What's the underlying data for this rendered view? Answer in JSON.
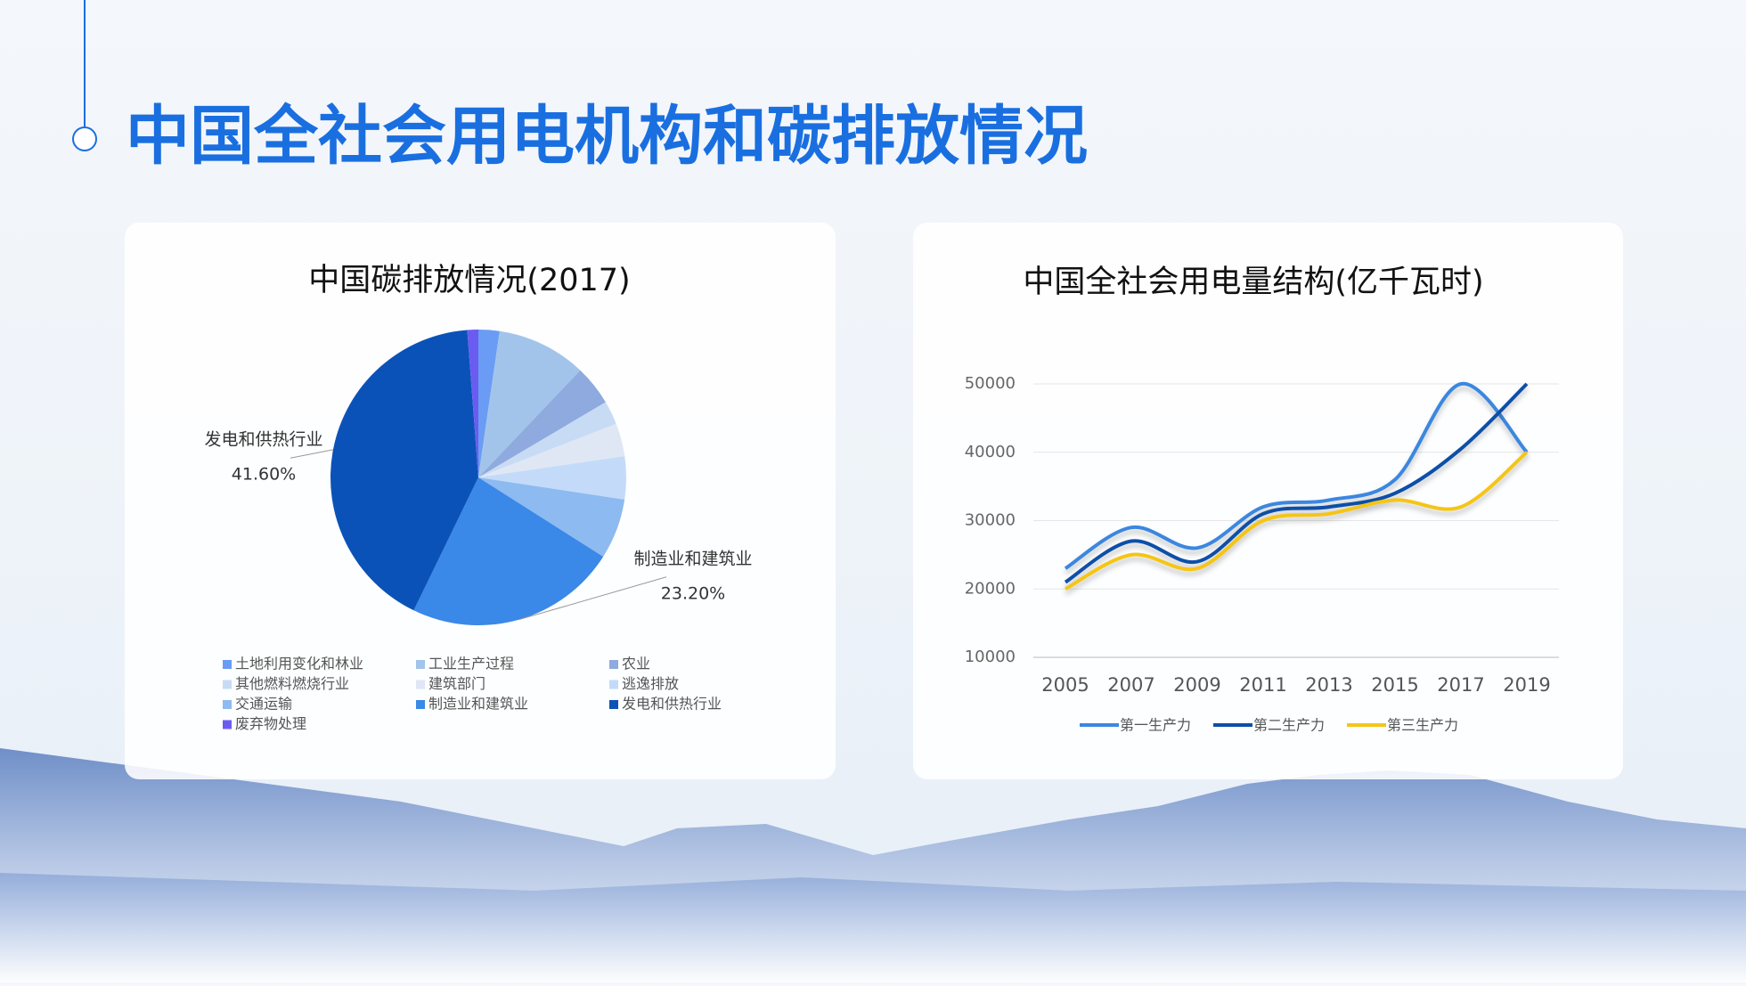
{
  "title": "中国全社会用电机构和碳排放情况",
  "chart_data": [
    {
      "type": "pie",
      "title": "中国碳排放情况(2017)",
      "categories": [
        "土地利用变化和林业",
        "工业生产过程",
        "农业",
        "其他燃料燃烧行业",
        "建筑部门",
        "逃逸排放",
        "交通运输",
        "制造业和建筑业",
        "发电和供热行业",
        "废弃物处理"
      ],
      "values": [
        2.3,
        9.8,
        4.4,
        2.6,
        3.6,
        4.7,
        6.6,
        23.2,
        41.6,
        1.2
      ],
      "value_labels": [
        null,
        null,
        null,
        null,
        null,
        null,
        null,
        "23.20%",
        "41.60%",
        null
      ],
      "colors": [
        "#6a9cf5",
        "#a3c4ea",
        "#8eaade",
        "#c7dbf5",
        "#dfe7f5",
        "#c3dbf9",
        "#8dbaf0",
        "#3a88e8",
        "#0b52b8",
        "#6a5cf0"
      ]
    },
    {
      "type": "line",
      "title": "中国全社会用电量结构(亿千瓦时)",
      "categories": [
        "2005",
        "2007",
        "2009",
        "2011",
        "2013",
        "2015",
        "2017",
        "2019"
      ],
      "series": [
        {
          "name": "第一生产力",
          "color": "#3b87e0",
          "values": [
            23000,
            29000,
            26000,
            32000,
            33000,
            36000,
            50000,
            40000
          ]
        },
        {
          "name": "第二生产力",
          "color": "#0d4fa8",
          "values": [
            21000,
            27000,
            24000,
            31000,
            32000,
            34000,
            40500,
            50000
          ]
        },
        {
          "name": "第三生产力",
          "color": "#f5c518",
          "values": [
            20000,
            25000,
            23000,
            30000,
            31000,
            33000,
            32000,
            40000
          ]
        }
      ],
      "ylim": [
        10000,
        50000
      ],
      "yticks": [
        10000,
        20000,
        30000,
        40000,
        50000
      ],
      "grid": true
    }
  ]
}
